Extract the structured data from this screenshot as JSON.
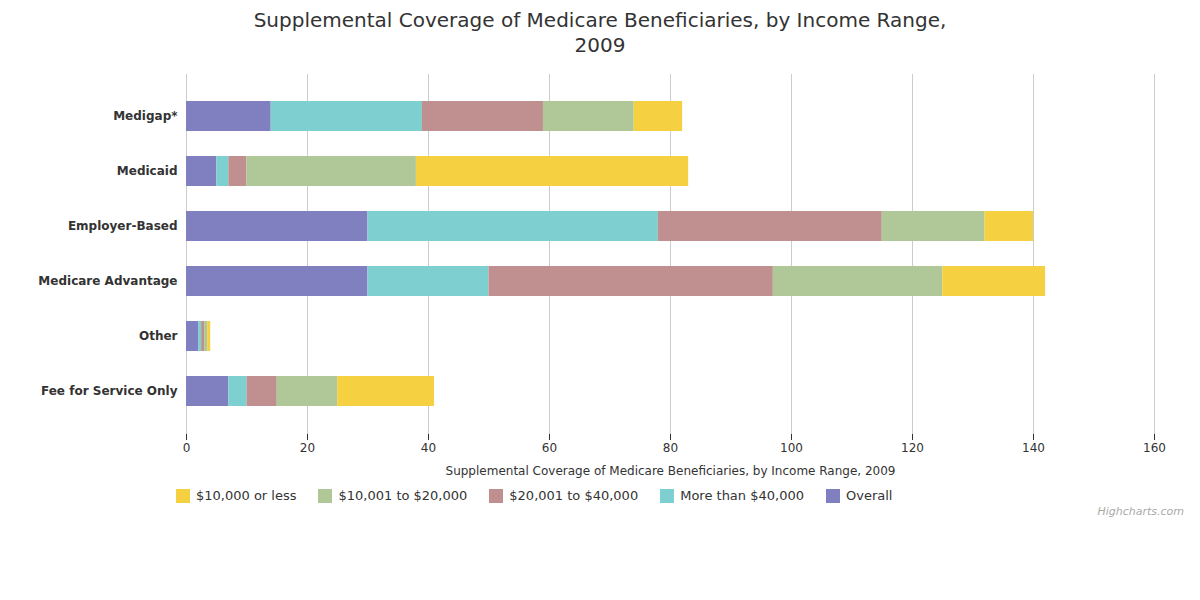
{
  "chart_data": {
    "type": "bar",
    "orientation": "horizontal",
    "stacked": true,
    "title": "Supplemental Coverage of Medicare Beneficiaries, by Income Range,\n2009",
    "xlabel": "Supplemental Coverage of Medicare Beneficiaries, by Income Range, 2009",
    "categories": [
      "Medigap*",
      "Medicaid",
      "Employer-Based",
      "Medicare Advantage",
      "Other",
      "Fee for Service Only"
    ],
    "series": [
      {
        "name": "Overall",
        "color": "#8080c0",
        "values": [
          14,
          5,
          30,
          30,
          2,
          7
        ]
      },
      {
        "name": "More than $40,000",
        "color": "#7ecfcf",
        "values": [
          25,
          2,
          48,
          20,
          0.5,
          3
        ]
      },
      {
        "name": "$20,001 to $40,000",
        "color": "#c09090",
        "values": [
          20,
          3,
          37,
          47,
          0.5,
          5
        ]
      },
      {
        "name": "$10,001 to $20,000",
        "color": "#b0c898",
        "values": [
          15,
          28,
          17,
          28,
          0.5,
          10
        ]
      },
      {
        "name": "$10,000 or less",
        "color": "#f5d040",
        "values": [
          8,
          45,
          8,
          17,
          0.5,
          16
        ]
      }
    ],
    "xlim": [
      0,
      160
    ],
    "xticks": [
      0,
      20,
      40,
      60,
      80,
      100,
      120,
      140,
      160
    ],
    "grid": true,
    "legend": "bottom",
    "annotations": [
      "Highcharts.com"
    ]
  }
}
